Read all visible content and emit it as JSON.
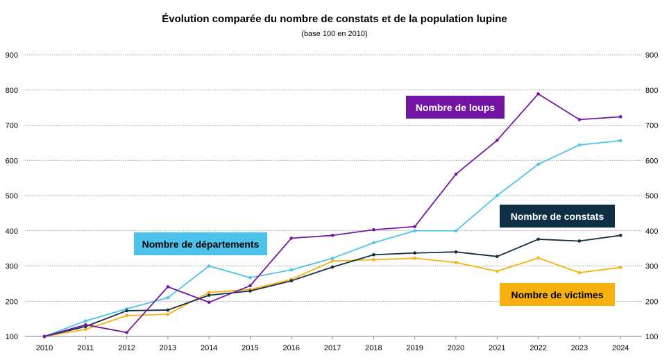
{
  "chart_data": {
    "type": "line",
    "title": "Évolution comparée du nombre de constats et de la population lupine",
    "subtitle": "(base 100 en 2010)",
    "x": [
      "2010",
      "2011",
      "2012",
      "2013",
      "2014",
      "2015",
      "2016",
      "2017",
      "2018",
      "2019",
      "2020",
      "2021",
      "2022",
      "2023",
      "2024"
    ],
    "ylim": [
      100,
      900
    ],
    "yticks": [
      "100",
      "200",
      "300",
      "400",
      "500",
      "600",
      "700",
      "800",
      "900"
    ],
    "grid": true,
    "series": [
      {
        "key": "departements",
        "name": "Nombre de départements",
        "color": "#4DC3EC",
        "label_text_color": "#000000",
        "values": [
          100,
          144,
          178,
          210,
          300,
          267,
          289,
          322,
          366,
          400,
          400,
          500,
          589,
          644,
          656
        ]
      },
      {
        "key": "victimes",
        "name": "Nombre de victimes",
        "color": "#F7B10F",
        "label_text_color": "#000000",
        "values": [
          100,
          120,
          159,
          163,
          225,
          233,
          262,
          314,
          318,
          322,
          310,
          285,
          323,
          281,
          296
        ]
      },
      {
        "key": "constats",
        "name": "Nombre de constats",
        "color": "#0F2F45",
        "label_text_color": "#ffffff",
        "values": [
          100,
          128,
          173,
          175,
          217,
          229,
          258,
          297,
          332,
          337,
          340,
          327,
          376,
          371,
          387
        ]
      },
      {
        "key": "loups",
        "name": "Nombre de loups",
        "color": "#7314A4",
        "label_text_color": "#ffffff",
        "values": [
          100,
          133,
          111,
          241,
          197,
          244,
          379,
          387,
          403,
          412,
          561,
          657,
          789,
          716,
          724
        ]
      }
    ]
  }
}
